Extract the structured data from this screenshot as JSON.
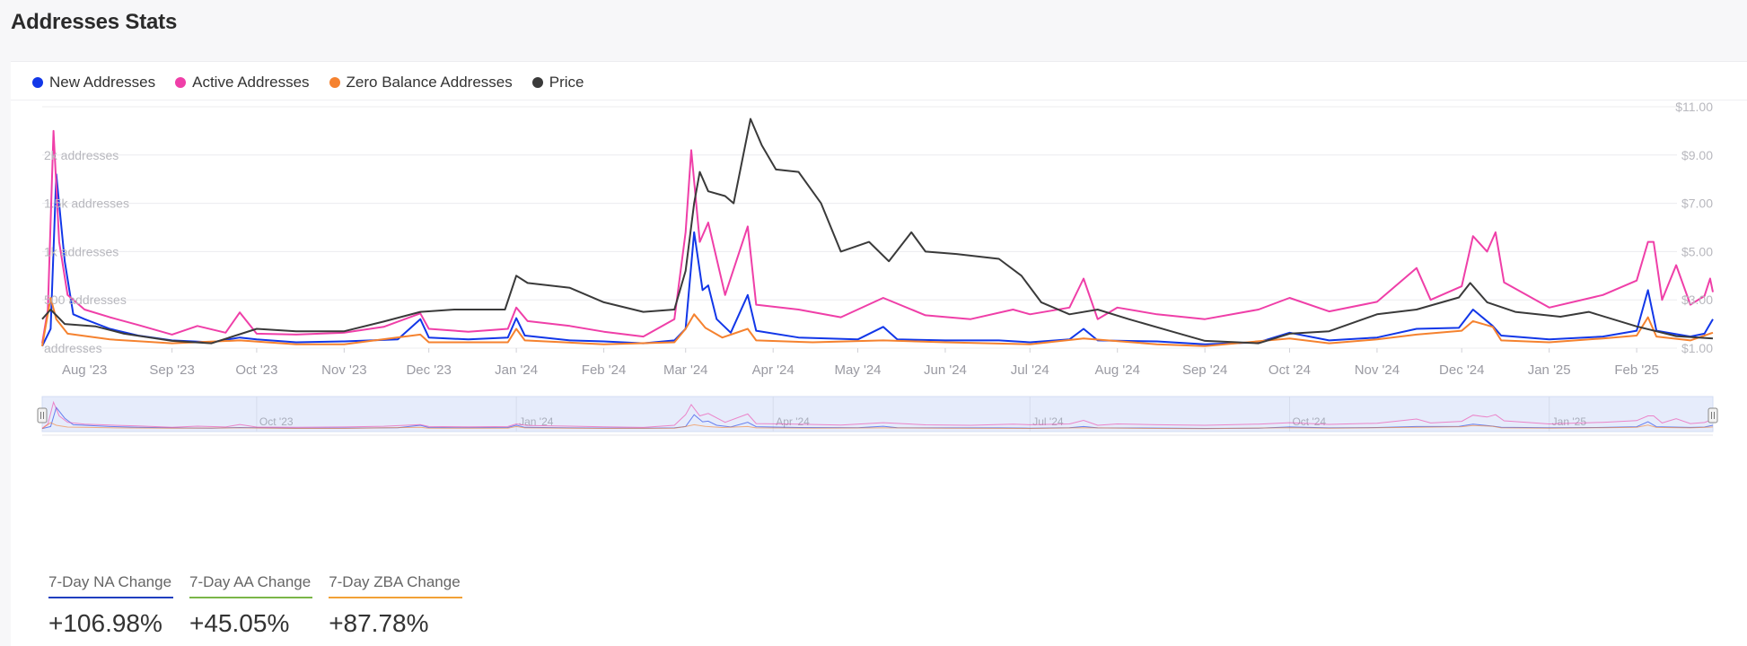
{
  "title": "Addresses Stats",
  "legend": [
    {
      "label": "New Addresses",
      "color": "#1237e8"
    },
    {
      "label": "Active Addresses",
      "color": "#ef3fa8"
    },
    {
      "label": "Zero Balance Addresses",
      "color": "#f5822f"
    },
    {
      "label": "Price",
      "color": "#3a3a3a"
    }
  ],
  "stats": [
    {
      "label": "7-Day NA Change",
      "value": "+106.98%",
      "color": "#1f3fbf"
    },
    {
      "label": "7-Day AA Change",
      "value": "+45.05%",
      "color": "#7ab648"
    },
    {
      "label": "7-Day ZBA Change",
      "value": "+87.78%",
      "color": "#f2a136"
    }
  ],
  "chart_data": {
    "type": "line",
    "x_ticks": [
      "Aug '23",
      "Sep '23",
      "Oct '23",
      "Nov '23",
      "Dec '23",
      "Jan '24",
      "Feb '24",
      "Mar '24",
      "Apr '24",
      "May '24",
      "Jun '24",
      "Jul '24",
      "Aug '24",
      "Sep '24",
      "Oct '24",
      "Nov '24",
      "Dec '24",
      "Jan '25",
      "Feb '25"
    ],
    "navigator_ticks": [
      "Oct '23",
      "Jan '24",
      "Apr '24",
      "Jul '24",
      "Oct '24",
      "Jan '25"
    ],
    "y_left_ticks": [
      "addresses",
      "500 addresses",
      "1k addresses",
      "1.5k addresses",
      "2k addresses"
    ],
    "y_left_values": [
      0,
      500,
      1000,
      1500,
      2000
    ],
    "ylim_left": [
      0,
      2500
    ],
    "y_right_ticks": [
      "$1.00",
      "$3.00",
      "$5.00",
      "$7.00",
      "$9.00",
      "$11.00"
    ],
    "y_right_values": [
      1,
      3,
      5,
      7,
      9,
      11
    ],
    "ylim_right": [
      1,
      11
    ],
    "x_start": "2023-07-17",
    "x_end": "2025-02-28",
    "series": [
      {
        "name": "New Addresses",
        "color": "#1237e8",
        "axis": "left",
        "points": [
          [
            "2023-07-17",
            20
          ],
          [
            "2023-07-20",
            200
          ],
          [
            "2023-07-22",
            1800
          ],
          [
            "2023-07-25",
            900
          ],
          [
            "2023-07-28",
            350
          ],
          [
            "2023-08-01",
            300
          ],
          [
            "2023-08-10",
            200
          ],
          [
            "2023-08-20",
            130
          ],
          [
            "2023-09-01",
            80
          ],
          [
            "2023-09-15",
            60
          ],
          [
            "2023-09-25",
            110
          ],
          [
            "2023-10-01",
            90
          ],
          [
            "2023-10-15",
            60
          ],
          [
            "2023-11-01",
            70
          ],
          [
            "2023-11-20",
            90
          ],
          [
            "2023-11-28",
            300
          ],
          [
            "2023-12-01",
            110
          ],
          [
            "2023-12-15",
            90
          ],
          [
            "2023-12-29",
            110
          ],
          [
            "2024-01-01",
            310
          ],
          [
            "2024-01-04",
            130
          ],
          [
            "2024-01-20",
            80
          ],
          [
            "2024-02-01",
            70
          ],
          [
            "2024-02-15",
            50
          ],
          [
            "2024-02-26",
            80
          ],
          [
            "2024-03-01",
            200
          ],
          [
            "2024-03-04",
            1200
          ],
          [
            "2024-03-07",
            600
          ],
          [
            "2024-03-09",
            650
          ],
          [
            "2024-03-12",
            300
          ],
          [
            "2024-03-17",
            160
          ],
          [
            "2024-03-23",
            550
          ],
          [
            "2024-03-26",
            180
          ],
          [
            "2024-04-10",
            110
          ],
          [
            "2024-05-01",
            90
          ],
          [
            "2024-05-10",
            220
          ],
          [
            "2024-05-15",
            90
          ],
          [
            "2024-06-01",
            80
          ],
          [
            "2024-06-20",
            80
          ],
          [
            "2024-07-01",
            60
          ],
          [
            "2024-07-15",
            90
          ],
          [
            "2024-07-20",
            200
          ],
          [
            "2024-07-25",
            80
          ],
          [
            "2024-08-15",
            70
          ],
          [
            "2024-09-01",
            40
          ],
          [
            "2024-09-20",
            60
          ],
          [
            "2024-10-01",
            160
          ],
          [
            "2024-10-15",
            80
          ],
          [
            "2024-11-01",
            110
          ],
          [
            "2024-11-15",
            200
          ],
          [
            "2024-11-30",
            210
          ],
          [
            "2024-12-05",
            400
          ],
          [
            "2024-12-12",
            230
          ],
          [
            "2024-12-15",
            130
          ],
          [
            "2025-01-01",
            90
          ],
          [
            "2025-01-20",
            120
          ],
          [
            "2025-02-01",
            180
          ],
          [
            "2025-02-05",
            600
          ],
          [
            "2025-02-08",
            180
          ],
          [
            "2025-02-20",
            120
          ],
          [
            "2025-02-25",
            150
          ],
          [
            "2025-02-28",
            300
          ]
        ]
      },
      {
        "name": "Active Addresses",
        "color": "#ef3fa8",
        "axis": "left",
        "points": [
          [
            "2023-07-17",
            50
          ],
          [
            "2023-07-19",
            400
          ],
          [
            "2023-07-21",
            2250
          ],
          [
            "2023-07-23",
            1100
          ],
          [
            "2023-07-26",
            550
          ],
          [
            "2023-08-01",
            400
          ],
          [
            "2023-08-10",
            320
          ],
          [
            "2023-08-20",
            240
          ],
          [
            "2023-09-01",
            140
          ],
          [
            "2023-09-10",
            230
          ],
          [
            "2023-09-20",
            160
          ],
          [
            "2023-09-25",
            370
          ],
          [
            "2023-10-01",
            150
          ],
          [
            "2023-10-15",
            140
          ],
          [
            "2023-11-01",
            160
          ],
          [
            "2023-11-15",
            220
          ],
          [
            "2023-11-28",
            360
          ],
          [
            "2023-12-01",
            200
          ],
          [
            "2023-12-15",
            170
          ],
          [
            "2023-12-29",
            200
          ],
          [
            "2024-01-01",
            420
          ],
          [
            "2024-01-05",
            280
          ],
          [
            "2024-01-20",
            230
          ],
          [
            "2024-02-01",
            170
          ],
          [
            "2024-02-15",
            120
          ],
          [
            "2024-02-26",
            300
          ],
          [
            "2024-03-01",
            1200
          ],
          [
            "2024-03-03",
            2050
          ],
          [
            "2024-03-06",
            1100
          ],
          [
            "2024-03-09",
            1300
          ],
          [
            "2024-03-15",
            550
          ],
          [
            "2024-03-23",
            1260
          ],
          [
            "2024-03-26",
            450
          ],
          [
            "2024-04-10",
            400
          ],
          [
            "2024-04-25",
            320
          ],
          [
            "2024-05-10",
            520
          ],
          [
            "2024-05-25",
            340
          ],
          [
            "2024-06-10",
            300
          ],
          [
            "2024-06-25",
            400
          ],
          [
            "2024-07-01",
            350
          ],
          [
            "2024-07-15",
            420
          ],
          [
            "2024-07-20",
            720
          ],
          [
            "2024-07-25",
            300
          ],
          [
            "2024-08-01",
            420
          ],
          [
            "2024-08-15",
            350
          ],
          [
            "2024-09-01",
            300
          ],
          [
            "2024-09-20",
            400
          ],
          [
            "2024-10-01",
            520
          ],
          [
            "2024-10-15",
            380
          ],
          [
            "2024-11-01",
            480
          ],
          [
            "2024-11-15",
            830
          ],
          [
            "2024-11-20",
            500
          ],
          [
            "2024-12-01",
            640
          ],
          [
            "2024-12-05",
            1160
          ],
          [
            "2024-12-10",
            1000
          ],
          [
            "2024-12-13",
            1200
          ],
          [
            "2024-12-16",
            680
          ],
          [
            "2025-01-01",
            420
          ],
          [
            "2025-01-20",
            550
          ],
          [
            "2025-02-01",
            700
          ],
          [
            "2025-02-05",
            1100
          ],
          [
            "2025-02-07",
            1100
          ],
          [
            "2025-02-10",
            500
          ],
          [
            "2025-02-15",
            860
          ],
          [
            "2025-02-20",
            450
          ],
          [
            "2025-02-25",
            540
          ],
          [
            "2025-02-27",
            720
          ],
          [
            "2025-02-28",
            580
          ]
        ]
      },
      {
        "name": "Zero Balance Addresses",
        "color": "#f5822f",
        "axis": "left",
        "points": [
          [
            "2023-07-17",
            20
          ],
          [
            "2023-07-20",
            520
          ],
          [
            "2023-07-22",
            300
          ],
          [
            "2023-07-26",
            150
          ],
          [
            "2023-08-10",
            90
          ],
          [
            "2023-09-01",
            50
          ],
          [
            "2023-09-25",
            80
          ],
          [
            "2023-10-15",
            40
          ],
          [
            "2023-11-01",
            40
          ],
          [
            "2023-11-28",
            140
          ],
          [
            "2023-12-01",
            60
          ],
          [
            "2023-12-29",
            60
          ],
          [
            "2024-01-01",
            200
          ],
          [
            "2024-01-04",
            80
          ],
          [
            "2024-02-01",
            40
          ],
          [
            "2024-02-26",
            60
          ],
          [
            "2024-03-01",
            200
          ],
          [
            "2024-03-04",
            350
          ],
          [
            "2024-03-08",
            210
          ],
          [
            "2024-03-14",
            110
          ],
          [
            "2024-03-23",
            200
          ],
          [
            "2024-03-26",
            80
          ],
          [
            "2024-04-15",
            60
          ],
          [
            "2024-05-10",
            80
          ],
          [
            "2024-06-01",
            60
          ],
          [
            "2024-07-01",
            40
          ],
          [
            "2024-07-20",
            100
          ],
          [
            "2024-08-15",
            40
          ],
          [
            "2024-09-01",
            20
          ],
          [
            "2024-10-01",
            100
          ],
          [
            "2024-10-15",
            50
          ],
          [
            "2024-11-01",
            90
          ],
          [
            "2024-11-15",
            140
          ],
          [
            "2024-12-01",
            180
          ],
          [
            "2024-12-05",
            280
          ],
          [
            "2024-12-12",
            220
          ],
          [
            "2024-12-15",
            80
          ],
          [
            "2025-01-01",
            60
          ],
          [
            "2025-01-20",
            100
          ],
          [
            "2025-02-01",
            130
          ],
          [
            "2025-02-05",
            320
          ],
          [
            "2025-02-08",
            120
          ],
          [
            "2025-02-20",
            80
          ],
          [
            "2025-02-28",
            160
          ]
        ]
      },
      {
        "name": "Price",
        "color": "#3a3a3a",
        "axis": "right",
        "points": [
          [
            "2023-07-17",
            2.2
          ],
          [
            "2023-07-20",
            2.6
          ],
          [
            "2023-07-25",
            2.0
          ],
          [
            "2023-08-05",
            1.9
          ],
          [
            "2023-08-15",
            1.6
          ],
          [
            "2023-09-01",
            1.3
          ],
          [
            "2023-09-15",
            1.2
          ],
          [
            "2023-10-01",
            1.8
          ],
          [
            "2023-10-15",
            1.7
          ],
          [
            "2023-11-01",
            1.7
          ],
          [
            "2023-11-15",
            2.1
          ],
          [
            "2023-11-28",
            2.5
          ],
          [
            "2023-12-10",
            2.6
          ],
          [
            "2023-12-28",
            2.6
          ],
          [
            "2024-01-01",
            4.0
          ],
          [
            "2024-01-05",
            3.7
          ],
          [
            "2024-01-20",
            3.5
          ],
          [
            "2024-02-01",
            2.9
          ],
          [
            "2024-02-15",
            2.5
          ],
          [
            "2024-02-26",
            2.6
          ],
          [
            "2024-03-01",
            4.2
          ],
          [
            "2024-03-04",
            7.0
          ],
          [
            "2024-03-06",
            8.3
          ],
          [
            "2024-03-09",
            7.5
          ],
          [
            "2024-03-15",
            7.3
          ],
          [
            "2024-03-18",
            7.0
          ],
          [
            "2024-03-24",
            10.5
          ],
          [
            "2024-03-28",
            9.4
          ],
          [
            "2024-04-02",
            8.4
          ],
          [
            "2024-04-10",
            8.3
          ],
          [
            "2024-04-18",
            7.0
          ],
          [
            "2024-04-25",
            5.0
          ],
          [
            "2024-05-05",
            5.4
          ],
          [
            "2024-05-12",
            4.6
          ],
          [
            "2024-05-20",
            5.8
          ],
          [
            "2024-05-25",
            5.0
          ],
          [
            "2024-06-05",
            4.9
          ],
          [
            "2024-06-20",
            4.7
          ],
          [
            "2024-06-28",
            4.0
          ],
          [
            "2024-07-05",
            2.9
          ],
          [
            "2024-07-15",
            2.4
          ],
          [
            "2024-07-25",
            2.6
          ],
          [
            "2024-08-05",
            2.2
          ],
          [
            "2024-08-20",
            1.7
          ],
          [
            "2024-09-01",
            1.3
          ],
          [
            "2024-09-20",
            1.2
          ],
          [
            "2024-10-01",
            1.6
          ],
          [
            "2024-10-15",
            1.7
          ],
          [
            "2024-11-01",
            2.4
          ],
          [
            "2024-11-15",
            2.6
          ],
          [
            "2024-11-30",
            3.1
          ],
          [
            "2024-12-04",
            3.7
          ],
          [
            "2024-12-10",
            2.9
          ],
          [
            "2024-12-20",
            2.5
          ],
          [
            "2025-01-05",
            2.3
          ],
          [
            "2025-01-15",
            2.5
          ],
          [
            "2025-02-01",
            1.9
          ],
          [
            "2025-02-15",
            1.5
          ],
          [
            "2025-02-28",
            1.4
          ]
        ]
      }
    ]
  }
}
